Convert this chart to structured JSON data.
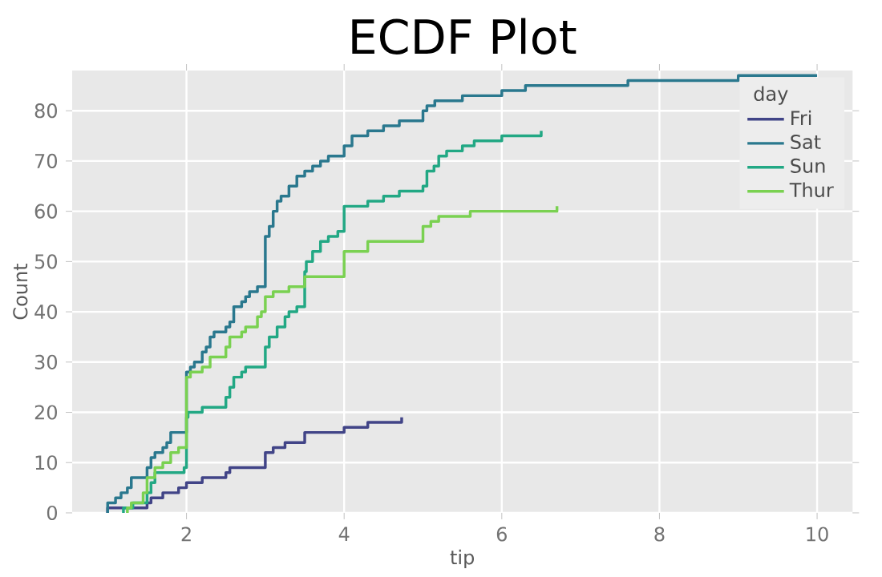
{
  "chart_data": {
    "type": "step",
    "title": "ECDF Plot",
    "xlabel": "tip",
    "ylabel": "Count",
    "legend_title": "day",
    "legend": "top right",
    "grid": true,
    "xlim": [
      0.55,
      10.45
    ],
    "ylim": [
      0,
      88
    ],
    "xticks": [
      2,
      4,
      6,
      8,
      10
    ],
    "yticks": [
      0,
      10,
      20,
      30,
      40,
      50,
      60,
      70,
      80
    ],
    "series": [
      {
        "name": "Fri",
        "color": "#414487",
        "x": [
          1.0,
          1.0,
          1.5,
          1.55,
          1.7,
          1.9,
          2.0,
          2.2,
          2.5,
          2.55,
          3.0,
          3.1,
          3.25,
          3.5,
          4.0,
          4.3,
          4.73
        ],
        "values": [
          0,
          1,
          2,
          3,
          4,
          5,
          6,
          7,
          8,
          9,
          12,
          13,
          14,
          16,
          17,
          18,
          19
        ]
      },
      {
        "name": "Sat",
        "color": "#2a788e",
        "x": [
          1.0,
          1.0,
          1.1,
          1.17,
          1.25,
          1.3,
          1.5,
          1.55,
          1.6,
          1.7,
          1.75,
          1.8,
          2.0,
          2.05,
          2.1,
          2.2,
          2.25,
          2.3,
          2.35,
          2.5,
          2.55,
          2.6,
          2.7,
          2.75,
          2.8,
          2.9,
          3.0,
          3.05,
          3.1,
          3.15,
          3.2,
          3.3,
          3.4,
          3.5,
          3.6,
          3.7,
          3.8,
          4.0,
          4.1,
          4.3,
          4.5,
          4.7,
          5.0,
          5.05,
          5.15,
          5.5,
          6.0,
          6.3,
          7.6,
          9.0,
          10.0
        ],
        "values": [
          0,
          2,
          3,
          4,
          5,
          7,
          9,
          11,
          12,
          13,
          14,
          16,
          28,
          29,
          30,
          32,
          33,
          35,
          36,
          37,
          38,
          41,
          42,
          43,
          44,
          45,
          55,
          57,
          60,
          62,
          63,
          65,
          67,
          68,
          69,
          70,
          71,
          73,
          75,
          76,
          77,
          78,
          80,
          81,
          82,
          83,
          84,
          85,
          86,
          87,
          87
        ]
      },
      {
        "name": "Sun",
        "color": "#22a884",
        "x": [
          1.2,
          1.2,
          1.32,
          1.5,
          1.55,
          1.6,
          1.97,
          2.0,
          2.02,
          2.2,
          2.5,
          2.55,
          2.6,
          2.7,
          2.75,
          3.0,
          3.05,
          3.15,
          3.25,
          3.3,
          3.4,
          3.5,
          3.52,
          3.6,
          3.7,
          3.8,
          3.92,
          4.0,
          4.3,
          4.5,
          4.7,
          5.0,
          5.05,
          5.14,
          5.2,
          5.3,
          5.5,
          5.65,
          6.0,
          6.5
        ],
        "values": [
          0,
          1,
          2,
          4,
          6,
          8,
          9,
          19,
          20,
          21,
          23,
          25,
          27,
          28,
          29,
          33,
          35,
          37,
          39,
          40,
          41,
          48,
          50,
          52,
          54,
          55,
          56,
          61,
          62,
          63,
          64,
          65,
          68,
          69,
          71,
          72,
          73,
          74,
          75,
          76
        ]
      },
      {
        "name": "Thur",
        "color": "#7ad151",
        "x": [
          1.25,
          1.25,
          1.3,
          1.45,
          1.5,
          1.6,
          1.7,
          1.8,
          1.9,
          2.0,
          2.05,
          2.2,
          2.3,
          2.5,
          2.55,
          2.7,
          2.75,
          2.9,
          2.95,
          3.0,
          3.1,
          3.3,
          3.5,
          4.0,
          4.3,
          5.0,
          5.1,
          5.2,
          5.6,
          6.0,
          6.7
        ],
        "values": [
          0,
          1,
          2,
          4,
          7,
          9,
          10,
          12,
          13,
          27,
          28,
          29,
          31,
          33,
          35,
          36,
          37,
          39,
          40,
          43,
          44,
          45,
          47,
          52,
          54,
          57,
          58,
          59,
          60,
          60,
          61
        ]
      }
    ]
  }
}
